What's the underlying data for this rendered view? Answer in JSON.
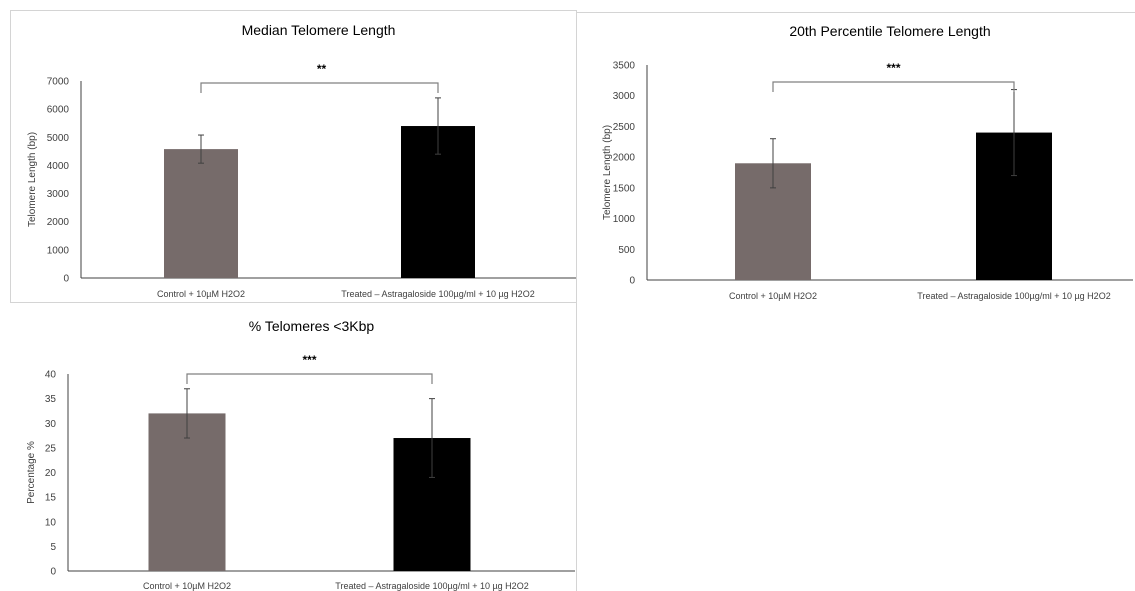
{
  "chart_data": [
    {
      "type": "bar",
      "title": "Median Telomere Length",
      "xlabel": "",
      "ylabel": "Telomere Length (bp)",
      "ylim": [
        0,
        7000
      ],
      "yticks": [
        0,
        1000,
        2000,
        3000,
        4000,
        5000,
        6000,
        7000
      ],
      "categories": [
        "Control + 10µM H2O2",
        "Treated – Astragaloside 100µg/ml + 10 µg H2O2"
      ],
      "values": [
        4580,
        5400
      ],
      "errors": [
        500,
        1000
      ],
      "bar_colors": [
        "#766b6a",
        "#000000"
      ],
      "significance": "**",
      "grid": false
    },
    {
      "type": "bar",
      "title": "20th Percentile Telomere Length",
      "xlabel": "",
      "ylabel": "Telomere Length (bp)",
      "ylim": [
        0,
        3500
      ],
      "yticks": [
        0,
        500,
        1000,
        1500,
        2000,
        2500,
        3000,
        3500
      ],
      "categories": [
        "Control + 10µM H2O2",
        "Treated – Astragaloside 100µg/ml + 10 µg H2O2"
      ],
      "values": [
        1900,
        2400
      ],
      "errors": [
        400,
        700
      ],
      "bar_colors": [
        "#766b6a",
        "#000000"
      ],
      "significance": "***",
      "grid": false
    },
    {
      "type": "bar",
      "title": "% Telomeres <3Kbp",
      "xlabel": "",
      "ylabel": "Percentage %",
      "ylim": [
        0,
        40
      ],
      "yticks": [
        0,
        5,
        10,
        15,
        20,
        25,
        30,
        35,
        40
      ],
      "categories": [
        "Control + 10µM H2O2",
        "Treated – Astragaloside 100µg/ml + 10 µg H2O2"
      ],
      "values": [
        32,
        27
      ],
      "errors": [
        5,
        8
      ],
      "bar_colors": [
        "#766b6a",
        "#000000"
      ],
      "significance": "***",
      "grid": false
    }
  ],
  "colors": {
    "axis": "#404040",
    "error_bar": "#404040",
    "bracket": "#808080",
    "panel_border": "#d4d4d4"
  }
}
